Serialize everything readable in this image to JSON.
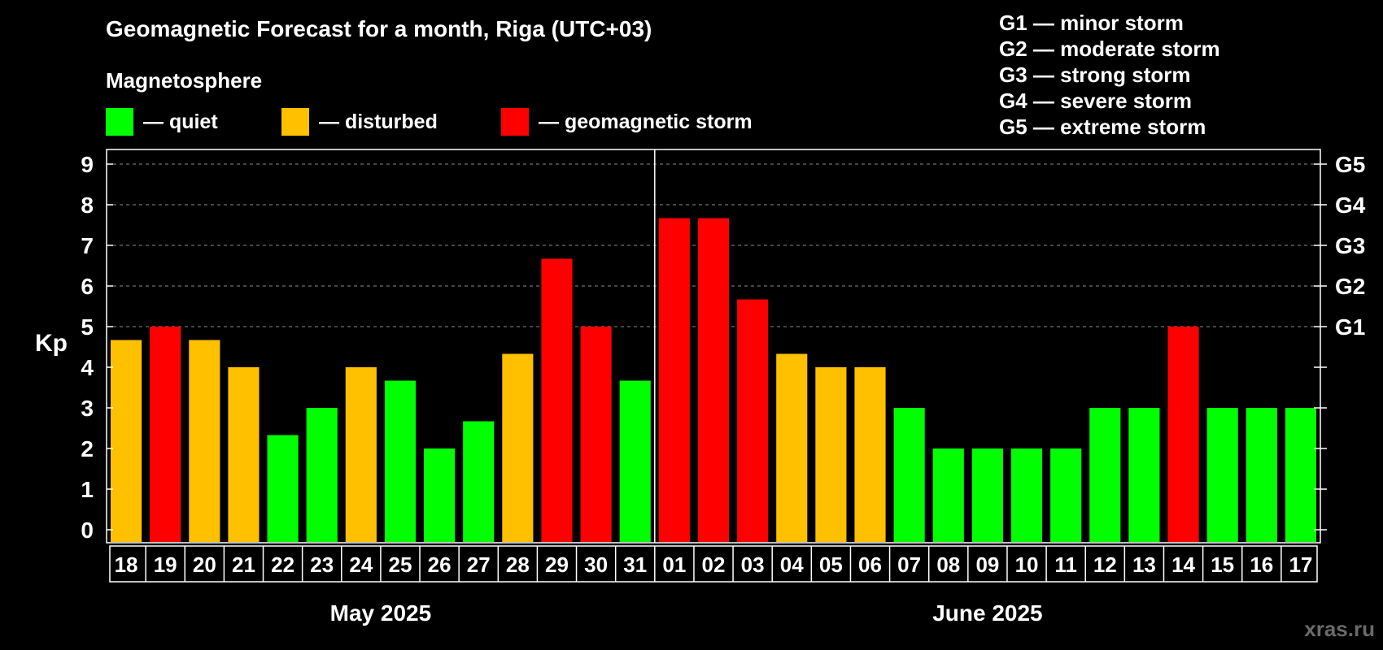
{
  "title": "Geomagnetic Forecast for a month, Riga (UTC+03)",
  "magnetosphere": {
    "title": "Magnetosphere",
    "items": [
      {
        "label": "— quiet",
        "color": "#00ff00"
      },
      {
        "label": "— disturbed",
        "color": "#ffc000"
      },
      {
        "label": "— geomagnetic storm",
        "color": "#ff0000"
      }
    ]
  },
  "g_legend": [
    "G1 — minor storm",
    "G2 — moderate storm",
    "G3 — strong storm",
    "G4 — severe storm",
    "G5 — extreme storm"
  ],
  "watermark": "xras.ru",
  "chart_data": {
    "type": "bar",
    "ylabel": "Kp",
    "ylim": [
      0,
      9
    ],
    "yticks": [
      0,
      1,
      2,
      3,
      4,
      5,
      6,
      7,
      8,
      9
    ],
    "right_ticks": [
      {
        "value": 5,
        "label": "G1"
      },
      {
        "value": 6,
        "label": "G2"
      },
      {
        "value": 7,
        "label": "G3"
      },
      {
        "value": 8,
        "label": "G4"
      },
      {
        "value": 9,
        "label": "G5"
      }
    ],
    "grid": "dashed horizontal from 5 to 9",
    "months": [
      {
        "label": "May 2025",
        "days": 14
      },
      {
        "label": "June 2025",
        "days": 17
      }
    ],
    "categories": [
      "18",
      "19",
      "20",
      "21",
      "22",
      "23",
      "24",
      "25",
      "26",
      "27",
      "28",
      "29",
      "30",
      "31",
      "01",
      "02",
      "03",
      "04",
      "05",
      "06",
      "07",
      "08",
      "09",
      "10",
      "11",
      "12",
      "13",
      "14",
      "15",
      "16",
      "17"
    ],
    "values": [
      4.67,
      5,
      4.67,
      4,
      2.33,
      3,
      4,
      3.67,
      2,
      2.67,
      4.33,
      6.67,
      5,
      3.67,
      7.67,
      7.67,
      5.67,
      4.33,
      4,
      4,
      3,
      2,
      2,
      2,
      2,
      3,
      3,
      5,
      3,
      3,
      3
    ],
    "status": [
      "disturbed",
      "storm",
      "disturbed",
      "disturbed",
      "quiet",
      "quiet",
      "disturbed",
      "quiet",
      "quiet",
      "quiet",
      "disturbed",
      "storm",
      "storm",
      "quiet",
      "storm",
      "storm",
      "storm",
      "disturbed",
      "disturbed",
      "disturbed",
      "quiet",
      "quiet",
      "quiet",
      "quiet",
      "quiet",
      "quiet",
      "quiet",
      "storm",
      "quiet",
      "quiet",
      "quiet"
    ],
    "colors": {
      "quiet": "#00ff00",
      "disturbed": "#ffc000",
      "storm": "#ff0000"
    }
  }
}
